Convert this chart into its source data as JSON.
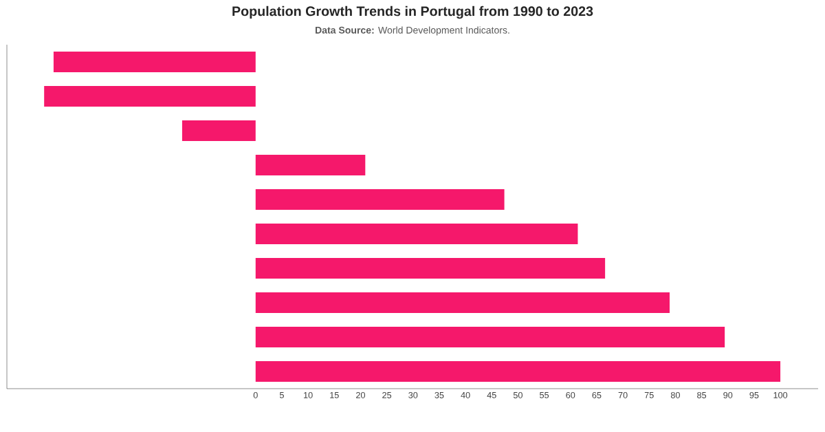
{
  "chart_data": {
    "type": "bar",
    "orientation": "horizontal",
    "title": "Population Growth Trends in Portugal from 1990 to 2023",
    "subtitle": "**Data Source:** World Development Indicators.",
    "categories": [
      null,
      null,
      null,
      null,
      null,
      null,
      null,
      null,
      null,
      null
    ],
    "values": [
      -38.5,
      -40.3,
      -14,
      20.9,
      47.4,
      61.4,
      66.6,
      78.9,
      89.4,
      100
    ],
    "color": "#f5186b",
    "xlim": [
      -47.4,
      107.2
    ],
    "xticks": [
      0,
      5,
      10,
      15,
      20,
      25,
      30,
      35,
      40,
      45,
      50,
      55,
      60,
      65,
      70,
      75,
      80,
      85,
      90,
      95,
      100
    ]
  }
}
